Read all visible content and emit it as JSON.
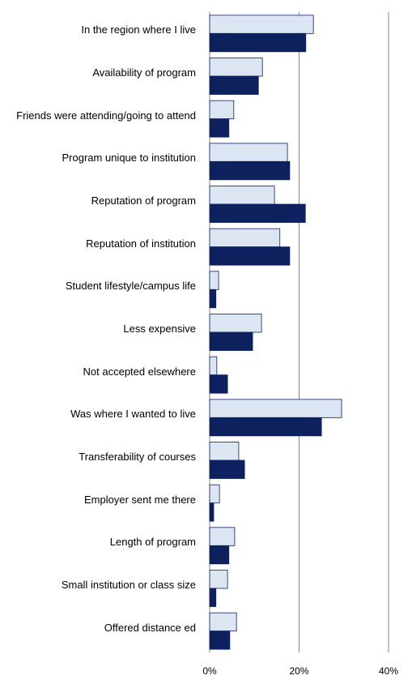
{
  "chart_data": {
    "type": "hbar",
    "categories": [
      "In the region where I live",
      "Availability of program",
      "Friends were attending/going to attend",
      "Program unique to institution",
      "Reputation of program",
      "Reputation of institution",
      "Student lifestyle/campus life",
      "Less expensive",
      "Not accepted elsewhere",
      "Was where I wanted to live",
      "Transferability of courses",
      "Employer sent me there",
      "Length of program",
      "Small institution or class size",
      "Offered distance ed"
    ],
    "series": [
      {
        "color": "#dce6f2",
        "values": [
          23.2,
          11.8,
          5.4,
          17.4,
          14.5,
          15.7,
          2.0,
          11.6,
          1.6,
          29.5,
          6.5,
          2.2,
          5.6,
          4.0,
          6.0
        ]
      },
      {
        "color": "#0c215e",
        "values": [
          21.5,
          10.9,
          4.3,
          17.9,
          21.4,
          17.9,
          1.4,
          9.6,
          4.0,
          25.0,
          7.8,
          0.9,
          4.3,
          1.4,
          4.5
        ]
      }
    ],
    "xlim": [
      0,
      40
    ],
    "xticks": [
      {
        "value": 0,
        "label": "0%"
      },
      {
        "value": 20,
        "label": "20%"
      },
      {
        "value": 40,
        "label": "40%"
      }
    ],
    "grid": true
  }
}
